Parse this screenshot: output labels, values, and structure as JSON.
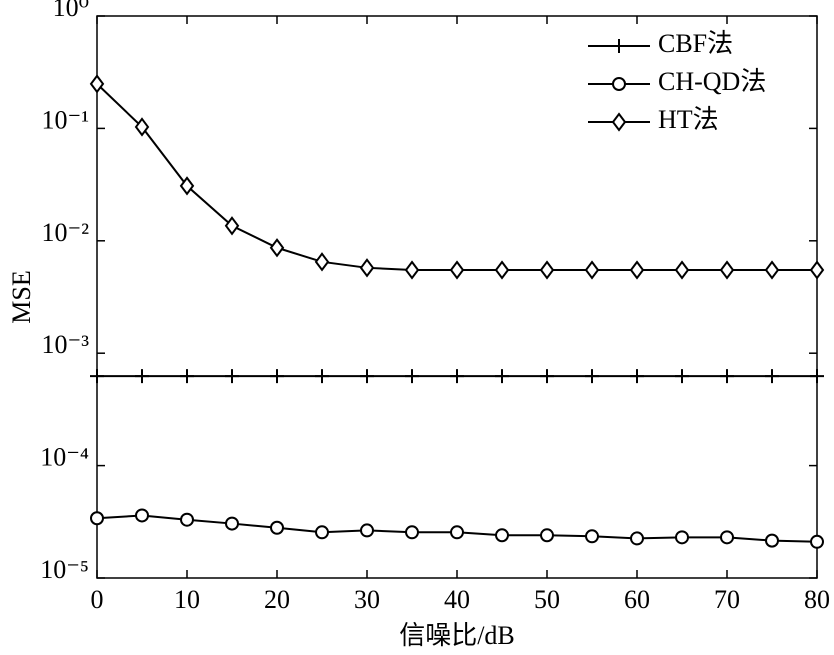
{
  "chart_data": {
    "type": "line",
    "log_y": true,
    "xlabel": "信噪比/dB",
    "ylabel": "MSE",
    "x": [
      0,
      5,
      10,
      15,
      20,
      25,
      30,
      35,
      40,
      45,
      50,
      55,
      60,
      65,
      70,
      75,
      80
    ],
    "series": [
      {
        "name": "CBF法",
        "color": "#000000",
        "marker": "plus",
        "values": [
          0.000625,
          0.000625,
          0.000625,
          0.000625,
          0.000625,
          0.000625,
          0.000625,
          0.000625,
          0.000625,
          0.000625,
          0.000625,
          0.000625,
          0.000625,
          0.000625,
          0.000625,
          0.000625,
          0.000625
        ]
      },
      {
        "name": "CH-QD法",
        "color": "#000000",
        "marker": "circle",
        "values": [
          3.4e-05,
          3.6e-05,
          3.3e-05,
          3.05e-05,
          2.8e-05,
          2.55e-05,
          2.65e-05,
          2.55e-05,
          2.55e-05,
          2.4e-05,
          2.4e-05,
          2.35e-05,
          2.25e-05,
          2.3e-05,
          2.3e-05,
          2.15e-05,
          2.1e-05
        ]
      },
      {
        "name": "HT法",
        "color": "#000000",
        "marker": "diamond",
        "values": [
          0.249,
          0.103,
          0.0308,
          0.0136,
          0.00867,
          0.0065,
          0.00575,
          0.0055,
          0.0055,
          0.0055,
          0.0055,
          0.0055,
          0.0055,
          0.0055,
          0.0055,
          0.0055,
          0.0055
        ]
      }
    ],
    "xlim": [
      0,
      80
    ],
    "xticks": [
      0,
      10,
      20,
      30,
      40,
      50,
      60,
      70,
      80
    ],
    "ylim": [
      1e-05,
      1
    ],
    "yticks": [
      {
        "value": 1e-05,
        "label": "10⁻⁵"
      },
      {
        "value": 0.0001,
        "label": "10⁻⁴"
      },
      {
        "value": 0.001,
        "label": "10⁻³"
      },
      {
        "value": 0.01,
        "label": "10⁻²"
      },
      {
        "value": 0.1,
        "label": "10⁻¹"
      },
      {
        "value": 1,
        "label": "10⁰"
      }
    ],
    "legend": "upper right",
    "grid": false
  }
}
